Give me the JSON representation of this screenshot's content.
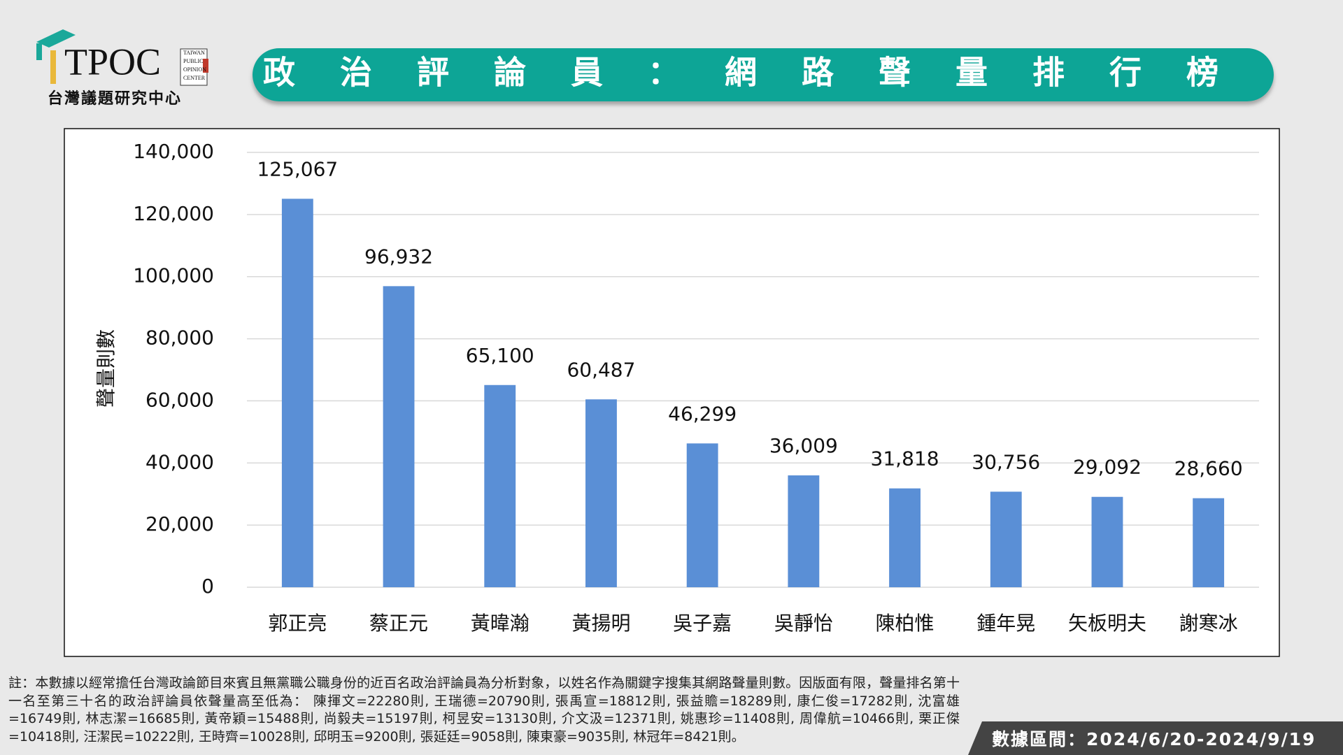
{
  "logo": {
    "name": "TPOC",
    "english": [
      "TAIWAN",
      "PUBLIC",
      "OPINION",
      "CENTER"
    ],
    "chinese": "台灣議題研究中心"
  },
  "chart_data": {
    "type": "bar",
    "title": "政治評論員：網路聲量排行榜",
    "y_label": "聲量則數",
    "categories": [
      "郭正亮",
      "蔡正元",
      "黃暐瀚",
      "黃揚明",
      "吳子嘉",
      "吳靜怡",
      "陳柏惟",
      "鍾年晃",
      "矢板明夫",
      "謝寒冰"
    ],
    "values": [
      125067,
      96932,
      65100,
      60487,
      46299,
      36009,
      31818,
      30756,
      29092,
      28660
    ],
    "value_labels": [
      "125,067",
      "96,932",
      "65,100",
      "60,487",
      "46,299",
      "36,009",
      "31,818",
      "30,756",
      "29,092",
      "28,660"
    ],
    "color": "#5a8fd6",
    "ylim": [
      0,
      140000
    ],
    "yticks": [
      0,
      {
        "value": 20000,
        "label": "20,000"
      },
      {
        "value": 40000,
        "label": "40,000"
      },
      {
        "value": 60000,
        "label": "60,000"
      },
      {
        "value": 80000,
        "label": "80,000"
      },
      {
        "value": 100000,
        "label": "100,000"
      },
      {
        "value": 120000,
        "label": "120,000"
      },
      {
        "value": 140000,
        "label": "140,000"
      }
    ],
    "grid": true
  },
  "footnote": "註：本數據以經常擔任台灣政論節目來賓且無黨職公職身份的近百名政治評論員為分析對象，以姓名作為關鍵字搜集其網路聲量則數。因版面有限，聲量排名第十一名至第三十名的政治評論員依聲量高至低為： 陳揮文=22280則, 王瑞德=20790則, 張禹宣=18812則, 張益贍=18289則, 康仁俊=17282則, 沈富雄=16749則, 林志潔=16685則, 黃帝穎=15488則, 尚毅夫=15197則, 柯昱安=13130則, 介文汲=12371則, 姚惠珍=11408則, 周偉航=10466則, 栗正傑=10418則, 汪潔民=10222則, 王時齊=10028則, 邱明玉=9200則, 張延廷=9058則, 陳東豪=9035則, 林冠年=8421則。",
  "date_range": "數據區間：2024/6/20-2024/9/19"
}
